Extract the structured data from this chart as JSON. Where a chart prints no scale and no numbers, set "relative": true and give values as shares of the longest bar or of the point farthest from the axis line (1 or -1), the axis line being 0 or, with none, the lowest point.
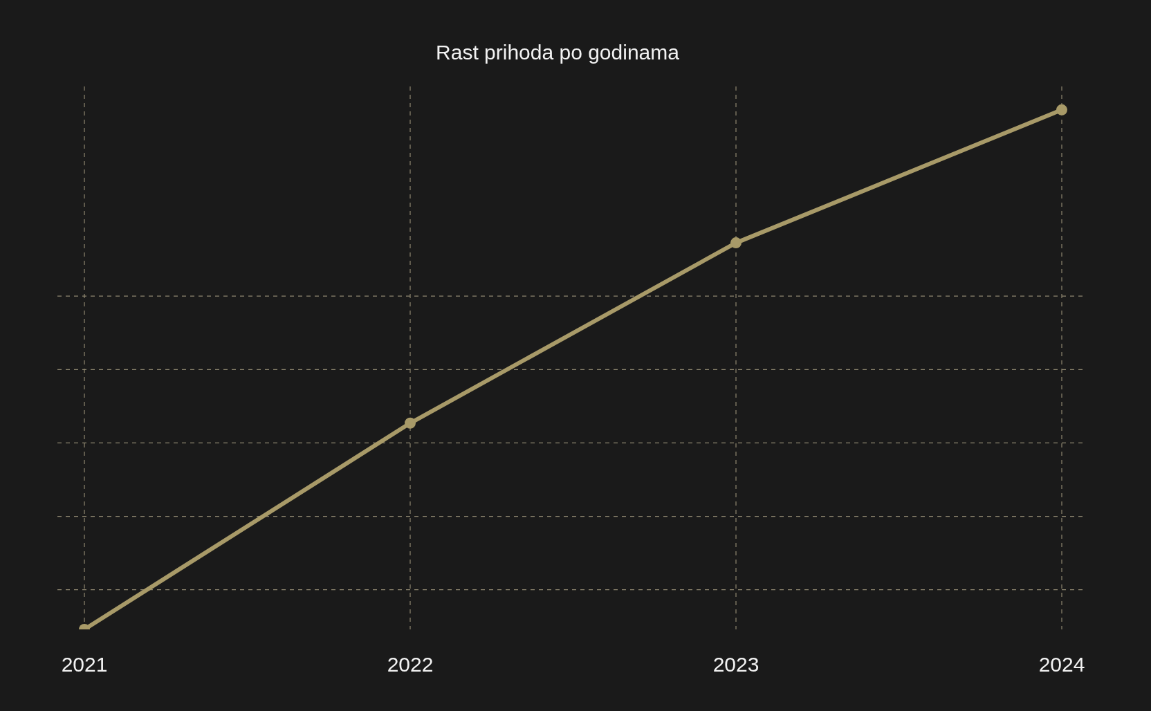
{
  "chart_data": {
    "type": "line",
    "title": "Rast prihoda po godinama",
    "categories": [
      "2021",
      "2022",
      "2023",
      "2024"
    ],
    "values": [
      0,
      0.397,
      0.744,
      1
    ],
    "color": "#a89a68",
    "relative": true,
    "grid": true,
    "marker": "circle",
    "line_style": "solid"
  }
}
